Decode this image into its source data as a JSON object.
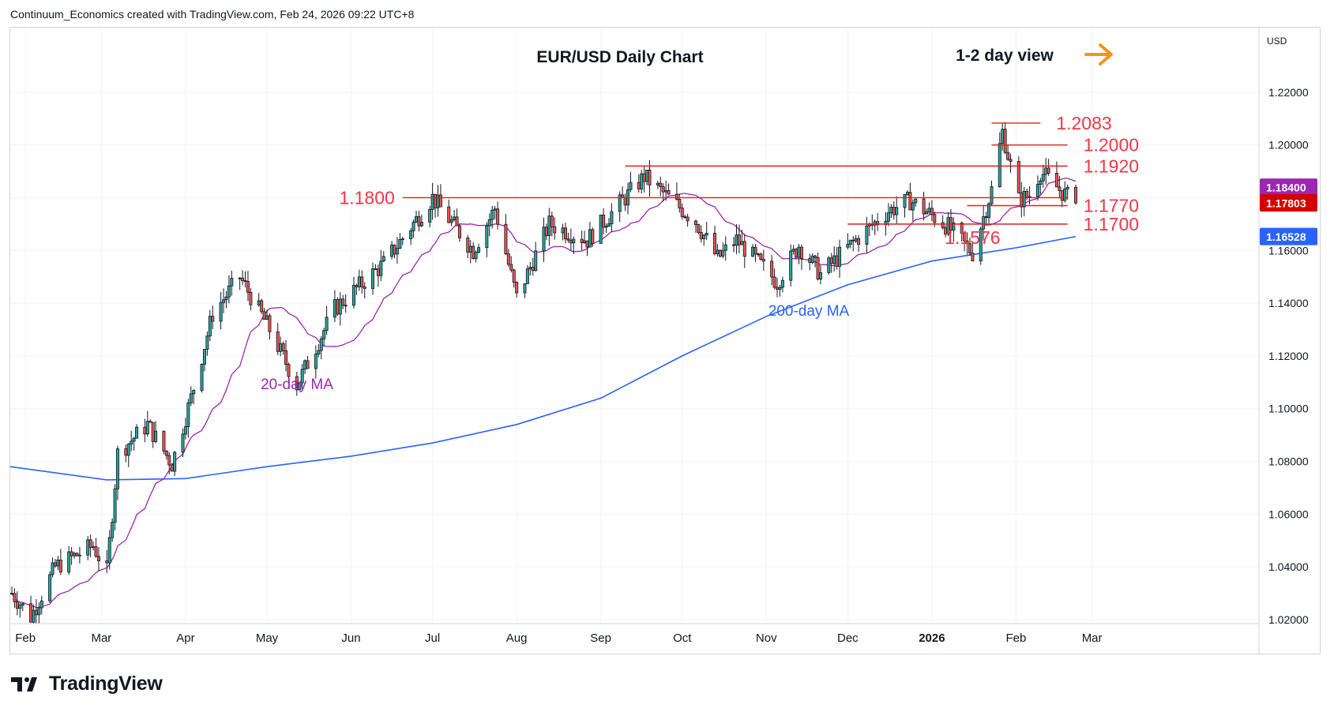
{
  "header": "Continuum_Economics created with TradingView.com, Feb 24, 2026 09:22 UTC+8",
  "brand": {
    "logo_text": "TradingView",
    "icon": "tradingview-logo-icon"
  },
  "colors": {
    "up": "#26a69a",
    "down": "#ef5350",
    "candle_outline": "#131722",
    "annotation_red": "#f23645",
    "level_line": "#e11d1d",
    "ma20": "#9c27b0",
    "ma200": "#2962ff",
    "arrow": "#f7931a",
    "grid": "#f0f3fa",
    "axis_text": "#131722"
  },
  "chart_data": {
    "type": "candlestick",
    "title": "EUR/USD Daily Chart",
    "subtitle": "1-2 day view",
    "ylabel": "USD",
    "ylim": [
      1.0185,
      1.2445
    ],
    "y_ticks": [
      "1.22000",
      "1.20000",
      "1.18000",
      "1.16000",
      "1.14000",
      "1.12000",
      "1.10000",
      "1.08000",
      "1.06000",
      "1.04000",
      "1.02000"
    ],
    "x_ticks": [
      "Feb",
      "Mar",
      "Apr",
      "May",
      "Jun",
      "Jul",
      "Aug",
      "Sep",
      "Oct",
      "Nov",
      "Dec",
      "2026",
      "Feb",
      "Mar"
    ],
    "price_badges": [
      {
        "label": "1.18400",
        "value": 1.184,
        "color": "#9c27b0",
        "series": "20-day MA"
      },
      {
        "label": "1.17803",
        "value": 1.17803,
        "color": "#d50000",
        "series": "last"
      },
      {
        "label": "1.16528",
        "value": 1.16528,
        "color": "#2962ff",
        "series": "200-day MA"
      }
    ],
    "levels": [
      {
        "label": "1.2083",
        "value": 1.2083,
        "from": "2026-01-23",
        "to": "2026-02-10",
        "label_pos": "right"
      },
      {
        "label": "1.2000",
        "value": 1.2,
        "from": "2026-01-23",
        "to": "2026-02-20",
        "label_pos": "right"
      },
      {
        "label": "1.1920",
        "value": 1.192,
        "from": "2025-09-10",
        "to": "2026-02-20",
        "label_pos": "right"
      },
      {
        "label": "1.1800",
        "value": 1.18,
        "from": "2025-06-20",
        "to": "2026-02-20",
        "label_pos": "left"
      },
      {
        "label": "1.1770",
        "value": 1.177,
        "from": "2026-01-14",
        "to": "2026-02-20",
        "label_pos": "right"
      },
      {
        "label": "1.1700",
        "value": 1.17,
        "from": "2025-12-01",
        "to": "2026-02-20",
        "label_pos": "right"
      },
      {
        "label": "1.1576",
        "value": 1.1576,
        "date": "2026-01-16",
        "label_pos": "below"
      }
    ],
    "series_labels": [
      {
        "name": "20-day MA"
      },
      {
        "name": "200-day MA"
      }
    ],
    "anchors": [
      {
        "date": "2025-01-27",
        "close": 1.03
      },
      {
        "date": "2025-02-03",
        "close": 1.021
      },
      {
        "date": "2025-02-12",
        "close": 1.04
      },
      {
        "date": "2025-02-26",
        "close": 1.048
      },
      {
        "date": "2025-03-03",
        "close": 1.038
      },
      {
        "date": "2025-03-07",
        "close": 1.083
      },
      {
        "date": "2025-03-18",
        "close": 1.094
      },
      {
        "date": "2025-03-27",
        "close": 1.079
      },
      {
        "date": "2025-04-03",
        "close": 1.104
      },
      {
        "date": "2025-04-11",
        "close": 1.136
      },
      {
        "date": "2025-04-21",
        "close": 1.15
      },
      {
        "date": "2025-05-02",
        "close": 1.13
      },
      {
        "date": "2025-05-12",
        "close": 1.109
      },
      {
        "date": "2025-05-26",
        "close": 1.138
      },
      {
        "date": "2025-06-13",
        "close": 1.155
      },
      {
        "date": "2025-07-01",
        "close": 1.18
      },
      {
        "date": "2025-07-16",
        "close": 1.16
      },
      {
        "date": "2025-07-24",
        "close": 1.176
      },
      {
        "date": "2025-08-01",
        "close": 1.142
      },
      {
        "date": "2025-08-13",
        "close": 1.17
      },
      {
        "date": "2025-08-27",
        "close": 1.164
      },
      {
        "date": "2025-09-17",
        "close": 1.188
      },
      {
        "date": "2025-10-06",
        "close": 1.171
      },
      {
        "date": "2025-10-14",
        "close": 1.157
      },
      {
        "date": "2025-10-21",
        "close": 1.164
      },
      {
        "date": "2025-11-05",
        "close": 1.148
      },
      {
        "date": "2025-11-13",
        "close": 1.162
      },
      {
        "date": "2025-11-21",
        "close": 1.151
      },
      {
        "date": "2025-12-05",
        "close": 1.165
      },
      {
        "date": "2025-12-16",
        "close": 1.175
      },
      {
        "date": "2025-12-24",
        "close": 1.179
      },
      {
        "date": "2026-01-07",
        "close": 1.169
      },
      {
        "date": "2026-01-16",
        "close": 1.159
      },
      {
        "date": "2026-01-23",
        "close": 1.183
      },
      {
        "date": "2026-01-27",
        "close": 1.205
      },
      {
        "date": "2026-02-02",
        "close": 1.179
      },
      {
        "date": "2026-02-06",
        "close": 1.181
      },
      {
        "date": "2026-02-10",
        "close": 1.19
      },
      {
        "date": "2026-02-17",
        "close": 1.183
      },
      {
        "date": "2026-02-23",
        "close": 1.178
      }
    ],
    "ma200_points": [
      {
        "date": "2025-01-27",
        "value": 1.078
      },
      {
        "date": "2025-03-03",
        "value": 1.073
      },
      {
        "date": "2025-04-01",
        "value": 1.0735
      },
      {
        "date": "2025-05-01",
        "value": 1.078
      },
      {
        "date": "2025-06-01",
        "value": 1.082
      },
      {
        "date": "2025-07-01",
        "value": 1.087
      },
      {
        "date": "2025-08-01",
        "value": 1.094
      },
      {
        "date": "2025-09-01",
        "value": 1.104
      },
      {
        "date": "2025-10-01",
        "value": 1.12
      },
      {
        "date": "2025-11-01",
        "value": 1.135
      },
      {
        "date": "2025-12-01",
        "value": 1.147
      },
      {
        "date": "2026-01-01",
        "value": 1.156
      },
      {
        "date": "2026-02-01",
        "value": 1.161
      },
      {
        "date": "2026-02-23",
        "value": 1.1653
      }
    ]
  }
}
